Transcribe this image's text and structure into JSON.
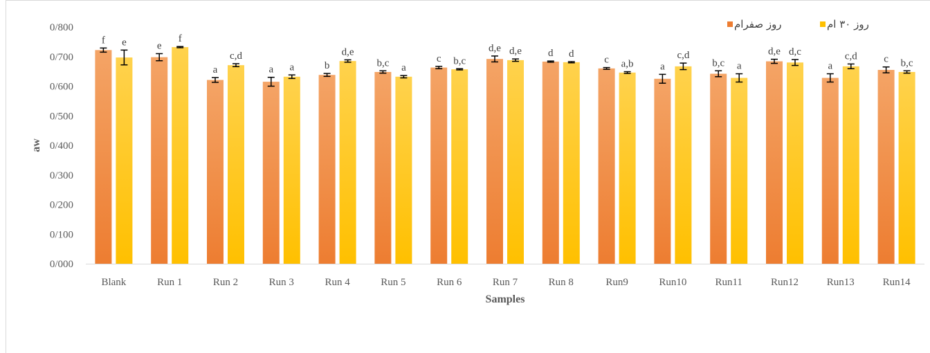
{
  "chart_data": {
    "type": "bar",
    "xlabel": "Samples",
    "ylabel": "aw",
    "ylim": [
      0,
      0.8
    ],
    "ytick_step": 0.1,
    "ytick_labels": [
      "0/000",
      "0/100",
      "0/200",
      "0/300",
      "0/400",
      "0/500",
      "0/600",
      "0/700",
      "0/800"
    ],
    "grid": false,
    "legend_position": "top-right",
    "categories": [
      "Blank",
      "Run 1",
      "Run 2",
      "Run 3",
      "Run 4",
      "Run 5",
      "Run 6",
      "Run 7",
      "Run 8",
      "Run9",
      "Run10",
      "Run11",
      "Run12",
      "Run13",
      "Run14"
    ],
    "series": [
      {
        "name": "روز صفرام",
        "color": "#ed7d31",
        "color_light": "#f4a466",
        "values": [
          0.722,
          0.698,
          0.621,
          0.615,
          0.638,
          0.648,
          0.663,
          0.692,
          0.683,
          0.66,
          0.625,
          0.642,
          0.684,
          0.628,
          0.655
        ],
        "errors": [
          0.007,
          0.012,
          0.008,
          0.015,
          0.005,
          0.004,
          0.004,
          0.01,
          0.002,
          0.003,
          0.015,
          0.01,
          0.007,
          0.014,
          0.01
        ],
        "labels": [
          "f",
          "e",
          "a",
          "a",
          "b",
          "b,c",
          "c",
          "d,e",
          "d",
          "c",
          "a",
          "b,c",
          "d,e",
          "a",
          "c"
        ]
      },
      {
        "name": "روز ۳۰ ام",
        "color": "#ffc000",
        "color_light": "#ffd24d",
        "values": [
          0.697,
          0.732,
          0.671,
          0.632,
          0.685,
          0.632,
          0.657,
          0.688,
          0.681,
          0.646,
          0.667,
          0.628,
          0.68,
          0.667,
          0.648
        ],
        "errors": [
          0.025,
          0.002,
          0.005,
          0.006,
          0.004,
          0.004,
          0.002,
          0.004,
          0.002,
          0.003,
          0.011,
          0.014,
          0.01,
          0.008,
          0.004
        ],
        "labels": [
          "e",
          "f",
          "c,d",
          "a",
          "d,e",
          "a",
          "b,c",
          "d,e",
          "d",
          "a,b",
          "c,d",
          "a",
          "d,c",
          "c,d",
          "b,c"
        ]
      }
    ]
  }
}
